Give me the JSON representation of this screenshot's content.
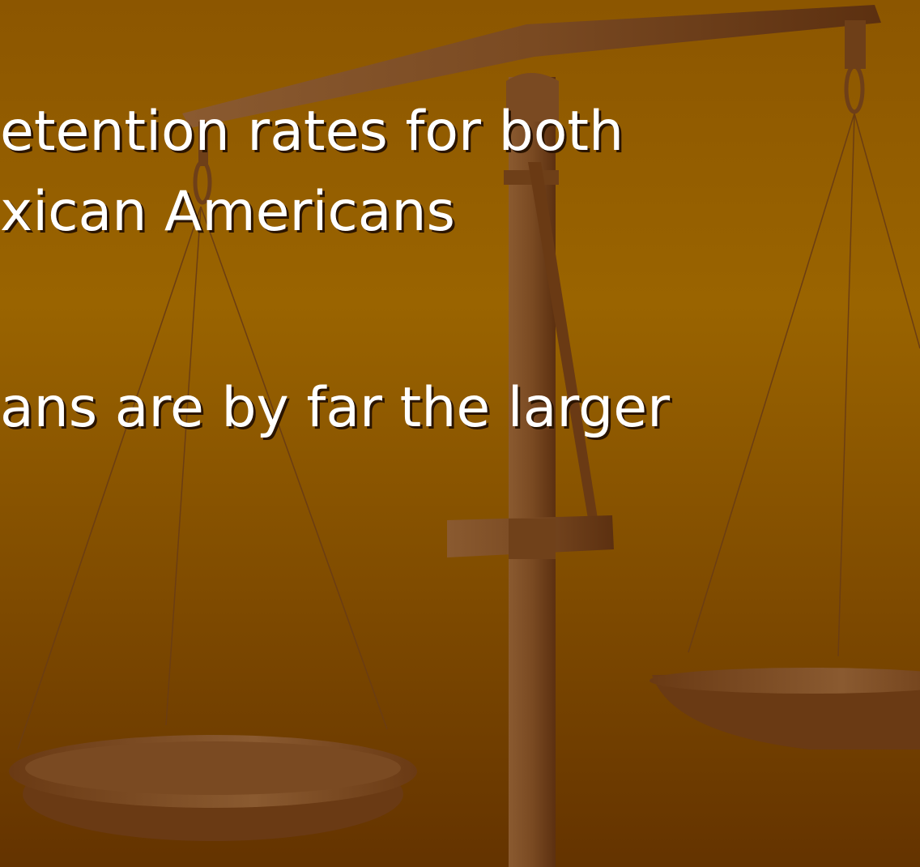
{
  "slide": {
    "lines": [
      "etention rates for both",
      "xican Americans",
      "ans are by far the larger"
    ]
  }
}
